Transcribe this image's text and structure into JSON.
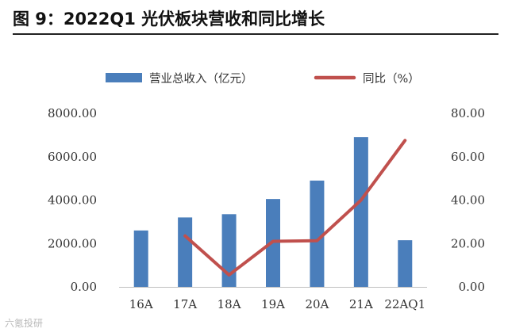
{
  "page": {
    "title": "图 9：2022Q1 光伏板块营收和同比增长",
    "watermark": "六氪投研"
  },
  "colors": {
    "bar": "#4a7ebb",
    "line": "#c0504d"
  },
  "chart_data": {
    "type": "bar",
    "title": "",
    "categories": [
      "16A",
      "17A",
      "18A",
      "19A",
      "20A",
      "21A",
      "22AQ1"
    ],
    "series": [
      {
        "name": "营业总收入（亿元）",
        "type": "bar",
        "axis": "left",
        "values": [
          2600,
          3200,
          3350,
          4050,
          4900,
          6900,
          2150
        ]
      },
      {
        "name": "同比（%）",
        "type": "line",
        "axis": "right",
        "values": [
          null,
          23.5,
          5.5,
          21.0,
          21.3,
          40.0,
          67.5
        ]
      }
    ],
    "y_left": {
      "min": 0,
      "max": 8000,
      "ticks": [
        "0.00",
        "2000.00",
        "4000.00",
        "6000.00",
        "8000.00"
      ]
    },
    "y_right": {
      "min": 0,
      "max": 80,
      "ticks": [
        "0.00",
        "20.00",
        "40.00",
        "60.00",
        "80.00"
      ]
    },
    "legend_position": "top",
    "grid": false
  }
}
